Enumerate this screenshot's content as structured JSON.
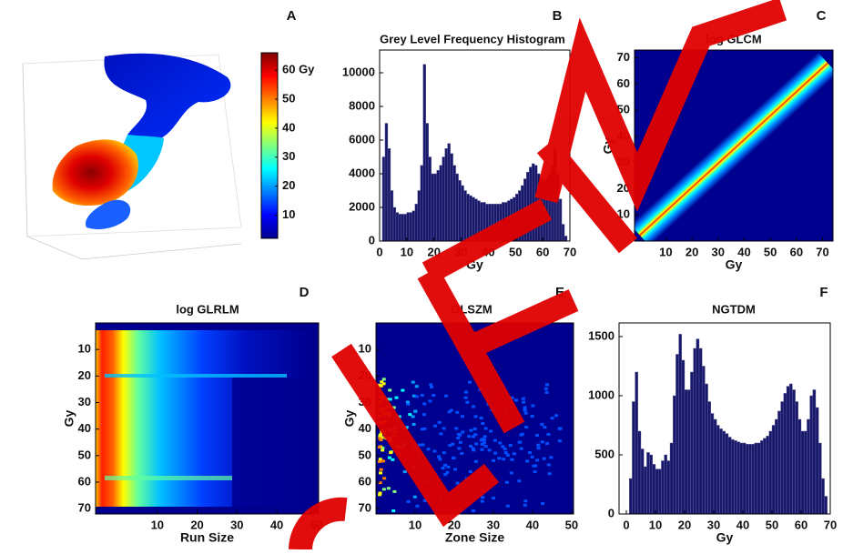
{
  "chart_data": [
    {
      "type": "colorbar",
      "panel": "A",
      "ylim": [
        2,
        66
      ],
      "yticks": [
        10,
        20,
        30,
        40,
        50,
        {
          "value": 60,
          "label": "60 Gy"
        }
      ]
    },
    {
      "type": "histogram",
      "panel": "B",
      "title": "Grey Level Frequency Histogram",
      "xlabel": "Gy",
      "color": "#17176b",
      "bins": [
        1,
        2,
        3,
        4,
        5,
        6,
        7,
        8,
        9,
        10,
        11,
        12,
        13,
        14,
        15,
        16,
        17,
        18,
        19,
        20,
        21,
        22,
        23,
        24,
        25,
        26,
        27,
        28,
        29,
        30,
        31,
        32,
        33,
        34,
        35,
        36,
        37,
        38,
        39,
        40,
        41,
        42,
        43,
        44,
        45,
        46,
        47,
        48,
        49,
        50,
        51,
        52,
        53,
        54,
        55,
        56,
        57,
        58,
        59,
        60,
        61,
        62,
        63,
        64,
        65,
        66,
        67,
        68,
        69
      ],
      "values": [
        5000,
        7000,
        5500,
        3000,
        2000,
        1700,
        1600,
        1600,
        1600,
        1700,
        1700,
        1800,
        2200,
        3000,
        4500,
        10500,
        7000,
        5000,
        4000,
        4000,
        4200,
        4500,
        5000,
        5500,
        5800,
        5200,
        4500,
        4000,
        3600,
        3300,
        3000,
        2800,
        2700,
        2600,
        2500,
        2400,
        2300,
        2300,
        2200,
        2200,
        2200,
        2200,
        2200,
        2200,
        2300,
        2300,
        2400,
        2500,
        2600,
        2800,
        3000,
        3300,
        3700,
        4100,
        4400,
        4600,
        4500,
        4000,
        3700,
        3600,
        3700,
        4000,
        4500,
        5500,
        4000,
        2500,
        1000,
        300
      ],
      "xlim": [
        0,
        70
      ],
      "ylim": [
        0,
        11350
      ],
      "xticks": [
        0,
        10,
        20,
        30,
        40,
        50,
        60,
        70
      ],
      "yticks": [
        0,
        2000,
        4000,
        6000,
        8000,
        10000
      ]
    },
    {
      "type": "heatmap",
      "panel": "C",
      "title": "log GLCM",
      "xlabel": "Gy",
      "ylabel": "Gy",
      "xlim": [
        -2,
        74
      ],
      "ylim": [
        0,
        73
      ],
      "xticks": [
        10,
        20,
        30,
        40,
        50,
        60,
        70
      ],
      "yticks": [
        10,
        20,
        30,
        40,
        50,
        60,
        70
      ]
    },
    {
      "type": "heatmap",
      "panel": "D",
      "title": "log GLRLM",
      "xlabel": "Run Size",
      "ylabel": "Gy",
      "xlim": [
        -5.5,
        50.5
      ],
      "ylim": [
        72,
        0
      ],
      "xticks": [
        10,
        20,
        30,
        40,
        50
      ],
      "yticks": [
        10,
        20,
        30,
        40,
        50,
        60,
        70
      ]
    },
    {
      "type": "heatmap",
      "panel": "E",
      "title": "GLSZM",
      "xlabel": "Zone Size",
      "ylabel": "Gy",
      "xlim": [
        0,
        50.5
      ],
      "ylim": [
        72,
        0
      ],
      "xticks": [
        10,
        20,
        30,
        40,
        50
      ],
      "yticks": [
        10,
        20,
        30,
        40,
        50,
        60,
        70
      ]
    },
    {
      "type": "histogram",
      "panel": "F",
      "title": "NGTDM",
      "xlabel": "Gy",
      "color": "#17176b",
      "bins": [
        1,
        2,
        3,
        4,
        5,
        6,
        7,
        8,
        9,
        10,
        11,
        12,
        13,
        14,
        15,
        16,
        17,
        18,
        19,
        20,
        21,
        22,
        23,
        24,
        25,
        26,
        27,
        28,
        29,
        30,
        31,
        32,
        33,
        34,
        35,
        36,
        37,
        38,
        39,
        40,
        41,
        42,
        43,
        44,
        45,
        46,
        47,
        48,
        49,
        50,
        51,
        52,
        53,
        54,
        55,
        56,
        57,
        58,
        59,
        60,
        61,
        62,
        63,
        64,
        65,
        66,
        67,
        68,
        69
      ],
      "values": [
        300,
        950,
        1200,
        700,
        550,
        400,
        520,
        500,
        420,
        380,
        380,
        450,
        500,
        450,
        600,
        1000,
        1350,
        1520,
        1300,
        1050,
        1050,
        1200,
        1400,
        1480,
        1400,
        1250,
        1100,
        950,
        850,
        800,
        750,
        720,
        700,
        680,
        650,
        630,
        620,
        610,
        600,
        600,
        590,
        590,
        590,
        600,
        600,
        620,
        640,
        660,
        700,
        750,
        800,
        870,
        950,
        1020,
        1080,
        1100,
        1050,
        950,
        800,
        700,
        700,
        800,
        1000,
        1050,
        900,
        600,
        300,
        150
      ],
      "xlim": [
        -2.5,
        70
      ],
      "ylim": [
        0,
        1615
      ],
      "xticks": [
        0,
        10,
        20,
        30,
        40,
        50,
        60,
        70
      ],
      "yticks": [
        0,
        500,
        1000,
        1500
      ]
    }
  ]
}
